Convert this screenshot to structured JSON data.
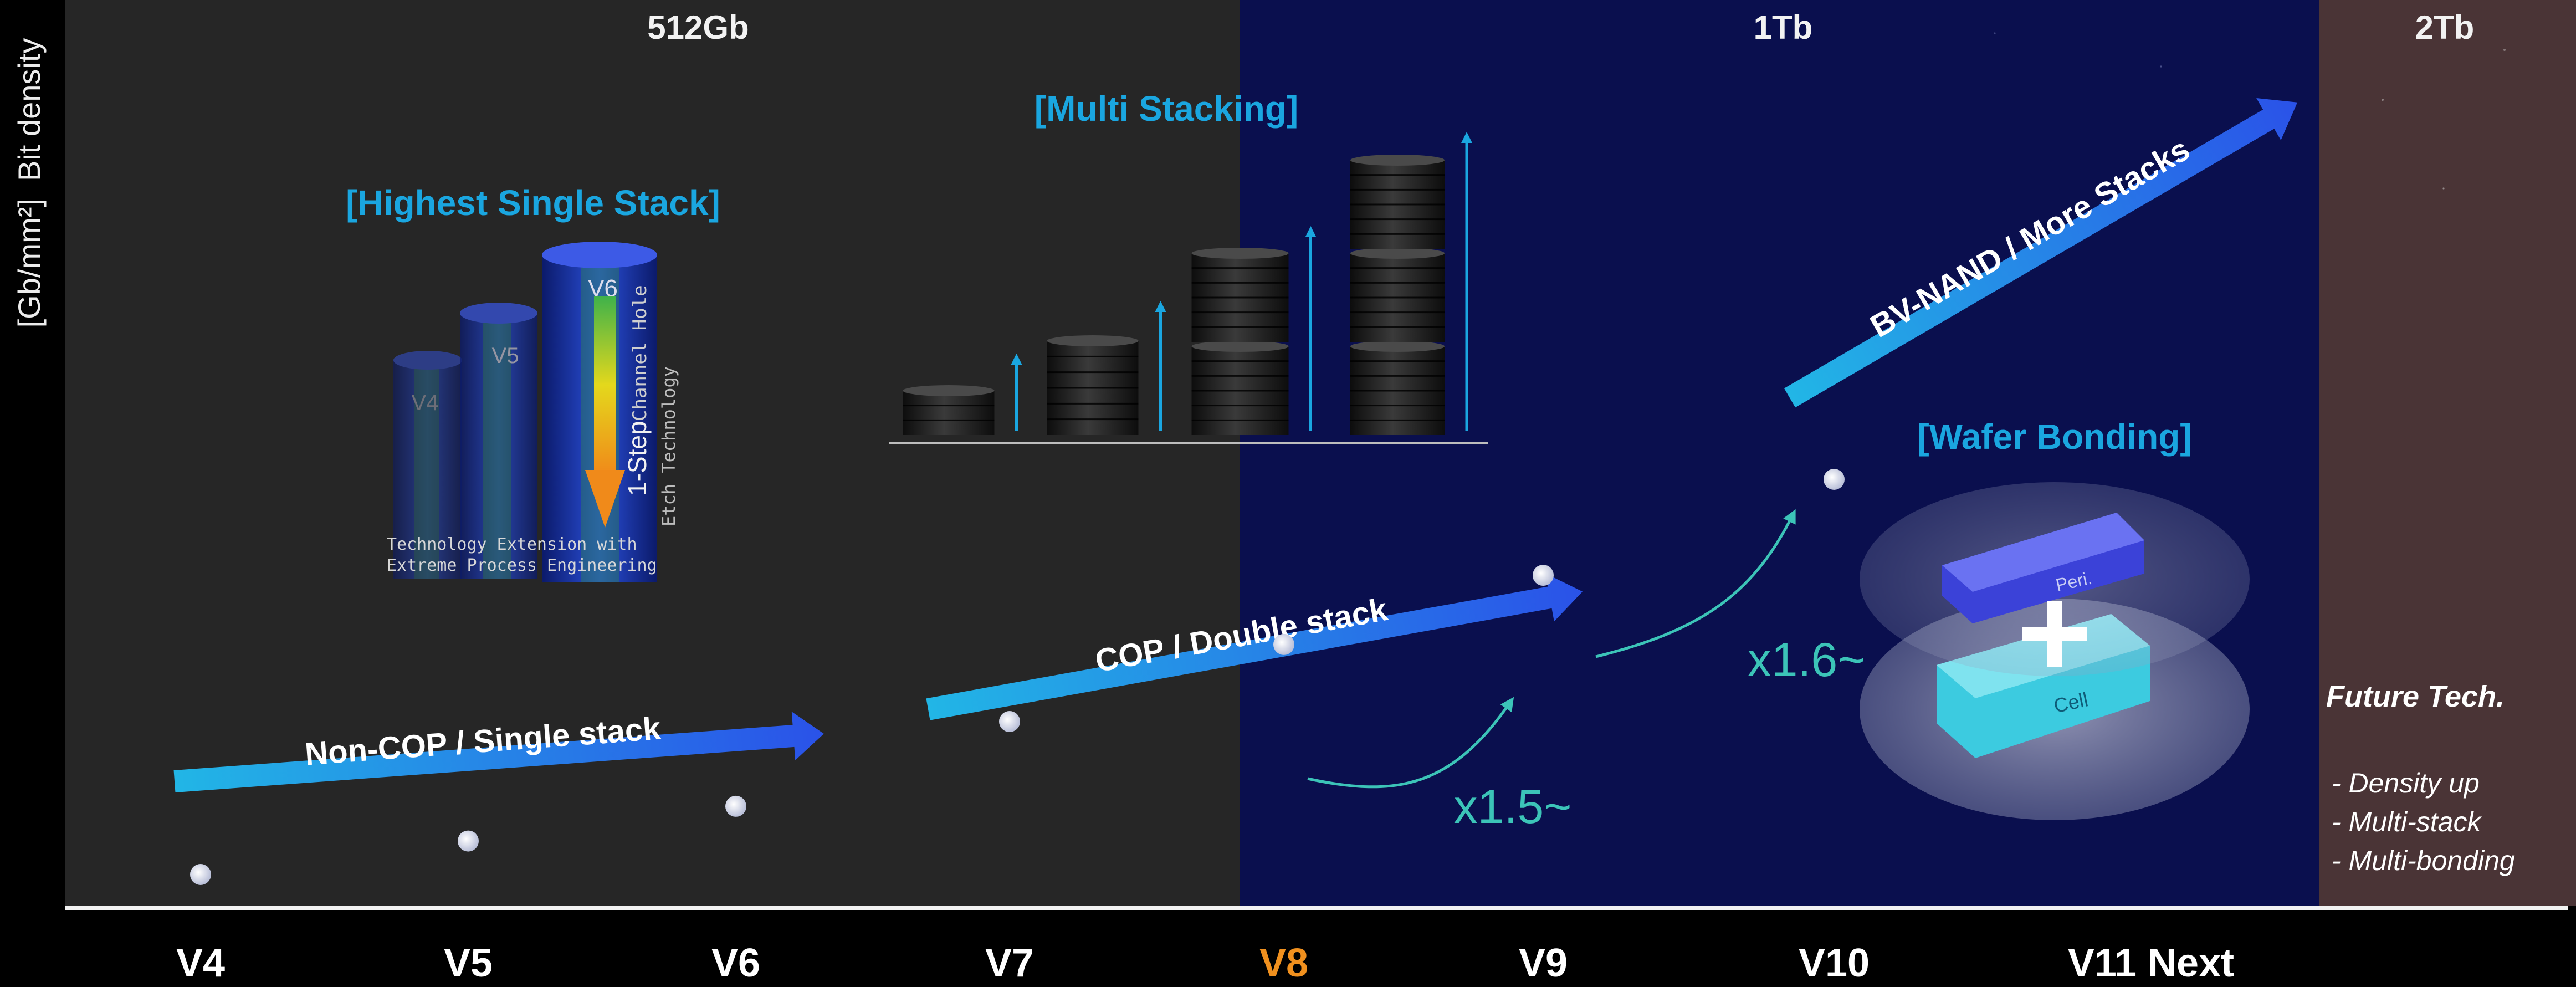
{
  "chart_data": {
    "type": "scatter",
    "ylabel": "[Gb/mm²]  Bit density",
    "categories": [
      "V4",
      "V5",
      "V6",
      "V7",
      "V8",
      "V9",
      "V10",
      "V11 Next"
    ],
    "highlight_category": "V8",
    "highlight_color": "#f0901e",
    "points": [
      {
        "x": "V4",
        "y": 1.0
      },
      {
        "x": "V5",
        "y": 1.2
      },
      {
        "x": "V6",
        "y": 1.45
      },
      {
        "x": "V7",
        "y": 2.3
      },
      {
        "x": "V8",
        "y": 3.5
      },
      {
        "x": "V9",
        "y": 5.1
      },
      {
        "x": "V10",
        "y": 8.6
      }
    ],
    "regions": [
      {
        "label": "512Gb",
        "color": "#262626"
      },
      {
        "label": "1Tb",
        "color": "#0a0f4e"
      },
      {
        "label": "2Tb",
        "color": "#4a3436"
      }
    ],
    "growth": [
      {
        "label": "x1.5~",
        "from": "V8",
        "to": "V9"
      },
      {
        "label": "x1.6~",
        "from": "V9",
        "to": "V10"
      }
    ],
    "trends": [
      {
        "label": "Non-COP / Single stack"
      },
      {
        "label": "COP / Double stack"
      },
      {
        "label": "BV-NAND / More Stacks"
      }
    ],
    "callouts": {
      "single_stack": {
        "title": "[Highest Single Stack]",
        "pillars": [
          "V4",
          "V5",
          "V6"
        ],
        "arrow_main": "1-Step",
        "arrow_sub1": "Channel Hole",
        "arrow_sub2": "Etch Technology",
        "note_line1": "Technology Extension with",
        "note_line2": "Extreme Process Engineering"
      },
      "multi_stacking": {
        "title": "[Multi Stacking]"
      },
      "wafer_bonding": {
        "title": "[Wafer Bonding]",
        "top_label": "Peri.",
        "bottom_label": "Cell"
      }
    },
    "future": {
      "title": "Future Tech.",
      "items": [
        "- Density up",
        "- Multi-stack",
        "- Multi-bonding"
      ]
    },
    "accent_color": "#1aa6e0",
    "growth_color": "#3cc4b8"
  }
}
